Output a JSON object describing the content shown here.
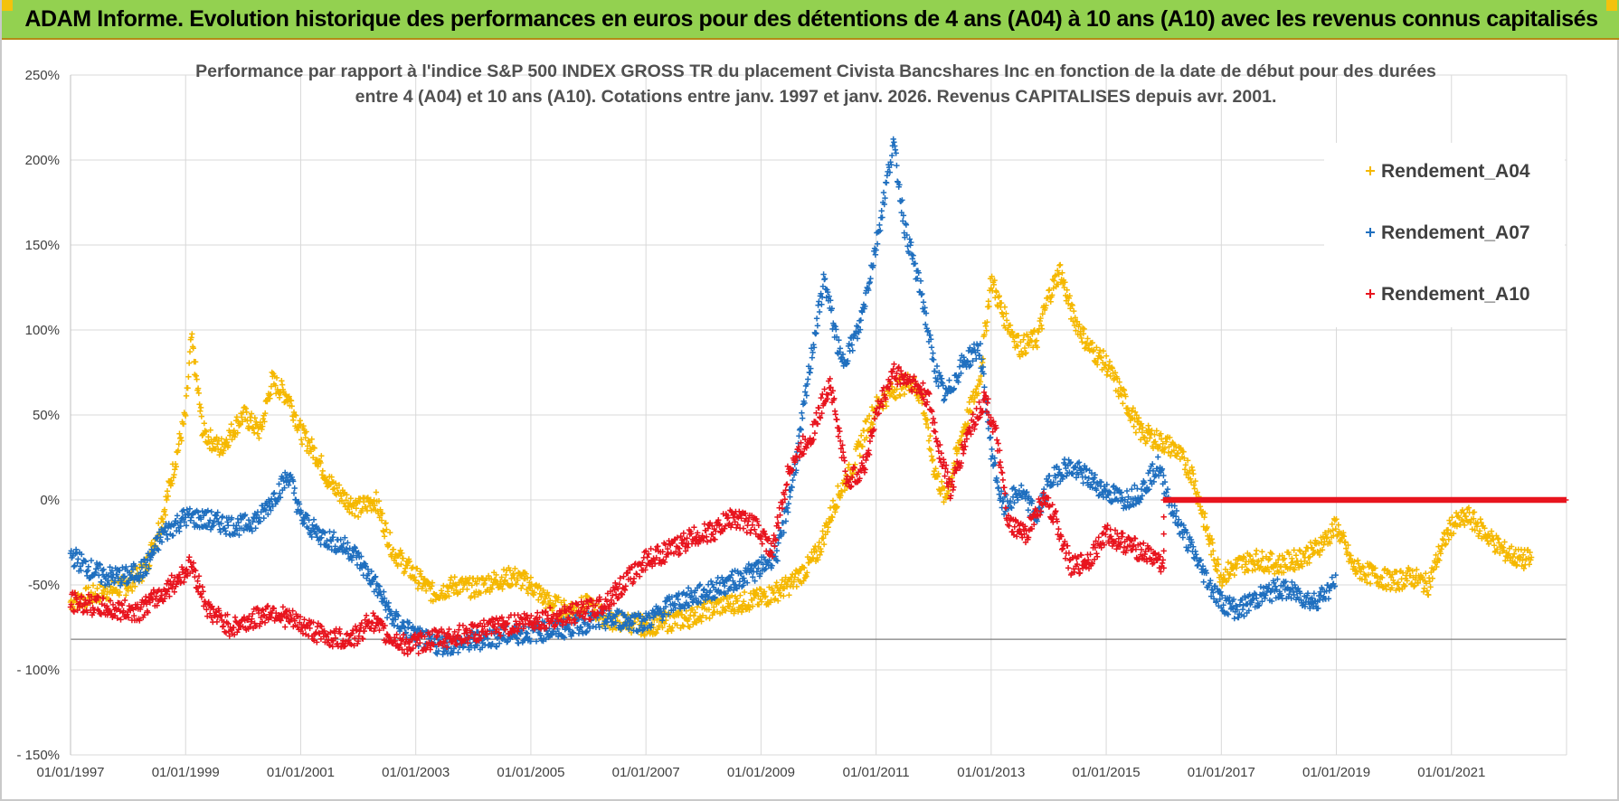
{
  "header": {
    "title": "ADAM Informe. Evolution historique des performances en euros pour des détentions de 4 ans (A04) à 10 ans (A10) avec les revenus connus capitalisés"
  },
  "colors": {
    "banner": "#93d150",
    "A04": "#f5b800",
    "A07": "#1f6fbf",
    "A10": "#e8141e",
    "grid": "#d9d9d9"
  },
  "chart_data": {
    "type": "scatter",
    "title_lines": [
      "Performance par rapport à l'indice S&P 500 INDEX GROSS TR  du placement Civista Bancshares Inc en fonction de la date de début pour des durées",
      "entre 4 (A04) et 10 ans (A10).  Cotations entre janv. 1997 et janv. 2026. Revenus CAPITALISES depuis avr. 2001."
    ],
    "xlabel": "",
    "ylabel": "",
    "xlim": [
      1997.0,
      2023.0
    ],
    "ylim": [
      -150,
      250
    ],
    "x_tick_values": [
      1997,
      1999,
      2001,
      2003,
      2005,
      2007,
      2009,
      2011,
      2013,
      2015,
      2017,
      2019,
      2021
    ],
    "x_tick_labels": [
      "01/01/1997",
      "01/01/1999",
      "01/01/2001",
      "01/01/2003",
      "01/01/2005",
      "01/01/2007",
      "01/01/2009",
      "01/01/2011",
      "01/01/2013",
      "01/01/2015",
      "01/01/2017",
      "01/01/2019",
      "01/01/2021"
    ],
    "y_tick_values": [
      250,
      200,
      150,
      100,
      50,
      0,
      -50,
      -100,
      -150
    ],
    "y_tick_labels": [
      "250%",
      "200%",
      "150%",
      "100%",
      "50%",
      "0%",
      "-50%",
      "- 100%",
      "- 150%"
    ],
    "grid": true,
    "legend_position": "top-right",
    "series": [
      {
        "name": "Rendement_A04",
        "marker": "+",
        "x": [
          1997.0,
          1997.5,
          1998.0,
          1998.3,
          1998.6,
          1998.8,
          1999.0,
          1999.1,
          1999.3,
          1999.6,
          2000.0,
          2000.3,
          2000.5,
          2000.8,
          2001.0,
          2001.3,
          2001.5,
          2001.8,
          2002.0,
          2002.3,
          2002.6,
          2003.0,
          2003.3,
          2003.7,
          2004.0,
          2004.3,
          2004.7,
          2005.0,
          2005.3,
          2005.6,
          2006.0,
          2006.3,
          2006.7,
          2007.0,
          2007.3,
          2007.7,
          2008.0,
          2008.3,
          2008.7,
          2009.0,
          2009.2,
          2009.5,
          2009.8,
          2010.0,
          2010.3,
          2010.6,
          2010.8,
          2011.0,
          2011.3,
          2011.6,
          2011.8,
          2012.0,
          2012.2,
          2012.5,
          2012.8,
          2013.0,
          2013.2,
          2013.5,
          2013.8,
          2014.0,
          2014.2,
          2014.4,
          2014.7,
          2015.0,
          2015.3,
          2015.6,
          2015.9,
          2016.2,
          2016.5,
          2016.8,
          2017.0,
          2017.3,
          2017.6,
          2018.0,
          2018.3,
          2018.6,
          2018.9,
          2019.0,
          2019.3,
          2019.7,
          2020.0,
          2020.3,
          2020.6,
          2020.8,
          2021.0,
          2021.3,
          2021.6,
          2021.9,
          2022.2,
          2022.4
        ],
        "y": [
          -60,
          -55,
          -50,
          -40,
          -10,
          20,
          50,
          95,
          40,
          30,
          50,
          40,
          70,
          60,
          40,
          25,
          10,
          0,
          -5,
          0,
          -30,
          -45,
          -55,
          -50,
          -52,
          -48,
          -45,
          -50,
          -60,
          -65,
          -62,
          -70,
          -72,
          -74,
          -72,
          -70,
          -65,
          -62,
          -60,
          -58,
          -55,
          -50,
          -40,
          -30,
          0,
          20,
          40,
          55,
          65,
          70,
          60,
          20,
          0,
          40,
          70,
          130,
          110,
          90,
          95,
          120,
          135,
          110,
          90,
          80,
          60,
          40,
          35,
          30,
          15,
          -25,
          -45,
          -38,
          -35,
          -38,
          -35,
          -30,
          -20,
          -15,
          -40,
          -45,
          -48,
          -45,
          -50,
          -30,
          -15,
          -10,
          -20,
          -30,
          -35,
          -35
        ]
      },
      {
        "name": "Rendement_A07",
        "marker": "+",
        "x": [
          1997.0,
          1997.3,
          1997.6,
          1998.0,
          1998.3,
          1998.6,
          1999.0,
          1999.4,
          1999.8,
          2000.0,
          2000.3,
          2000.6,
          2000.8,
          2001.0,
          2001.3,
          2001.6,
          2001.9,
          2002.1,
          2002.3,
          2002.6,
          2003.0,
          2003.3,
          2003.7,
          2004.0,
          2004.5,
          2005.0,
          2005.5,
          2006.0,
          2006.5,
          2007.0,
          2007.5,
          2008.0,
          2008.5,
          2009.0,
          2009.3,
          2009.6,
          2009.9,
          2010.1,
          2010.4,
          2010.7,
          2011.0,
          2011.3,
          2011.5,
          2011.8,
          2012.0,
          2012.2,
          2012.5,
          2012.8,
          2013.0,
          2013.2,
          2013.5,
          2013.8,
          2014.0,
          2014.3,
          2014.6,
          2015.0,
          2015.3,
          2015.6,
          2015.9,
          2016.2,
          2016.5,
          2016.8,
          2017.0,
          2017.3,
          2017.6,
          2018.0,
          2018.3,
          2018.6,
          2018.9,
          2019.0
        ],
        "y": [
          -32,
          -40,
          -45,
          -45,
          -40,
          -20,
          -10,
          -12,
          -15,
          -15,
          -10,
          5,
          15,
          -10,
          -20,
          -25,
          -30,
          -40,
          -50,
          -70,
          -80,
          -85,
          -85,
          -83,
          -80,
          -78,
          -76,
          -72,
          -70,
          -72,
          -60,
          -55,
          -48,
          -40,
          -30,
          20,
          90,
          130,
          80,
          100,
          150,
          210,
          160,
          120,
          80,
          60,
          80,
          90,
          30,
          -5,
          5,
          -10,
          10,
          20,
          15,
          5,
          0,
          5,
          20,
          -10,
          -30,
          -50,
          -60,
          -65,
          -58,
          -52,
          -55,
          -60,
          -52,
          -48
        ]
      },
      {
        "name": "Rendement_A10",
        "marker": "+",
        "x": [
          1997.0,
          1997.4,
          1997.8,
          1998.2,
          1998.6,
          1998.9,
          1999.1,
          1999.4,
          1999.8,
          2000.2,
          2000.5,
          2000.8,
          2001.1,
          2001.4,
          2001.7,
          2002.0,
          2002.2,
          2002.5,
          2002.8,
          2003.0,
          2003.3,
          2003.7,
          2004.0,
          2004.4,
          2004.8,
          2005.2,
          2005.6,
          2006.0,
          2006.3,
          2006.6,
          2007.0,
          2007.4,
          2007.8,
          2008.2,
          2008.5,
          2008.9,
          2009.2,
          2009.5,
          2009.9,
          2010.2,
          2010.5,
          2010.8,
          2011.0,
          2011.3,
          2011.6,
          2011.9,
          2012.1,
          2012.3,
          2012.6,
          2012.9,
          2013.1,
          2013.3,
          2013.6,
          2013.9,
          2014.1,
          2014.4,
          2014.7,
          2015.0,
          2015.3,
          2015.6,
          2015.9,
          2016.0,
          2016.0,
          2023.0
        ],
        "y": [
          -60,
          -62,
          -65,
          -65,
          -55,
          -45,
          -38,
          -65,
          -75,
          -70,
          -65,
          -70,
          -75,
          -80,
          -82,
          -80,
          -70,
          -80,
          -85,
          -85,
          -82,
          -80,
          -78,
          -75,
          -72,
          -70,
          -68,
          -65,
          -60,
          -50,
          -35,
          -30,
          -22,
          -18,
          -10,
          -15,
          -30,
          20,
          40,
          70,
          10,
          20,
          50,
          75,
          70,
          60,
          30,
          5,
          40,
          60,
          35,
          -15,
          -20,
          0,
          -10,
          -40,
          -35,
          -20,
          -25,
          -30,
          -35,
          -40,
          0,
          0
        ]
      }
    ]
  }
}
